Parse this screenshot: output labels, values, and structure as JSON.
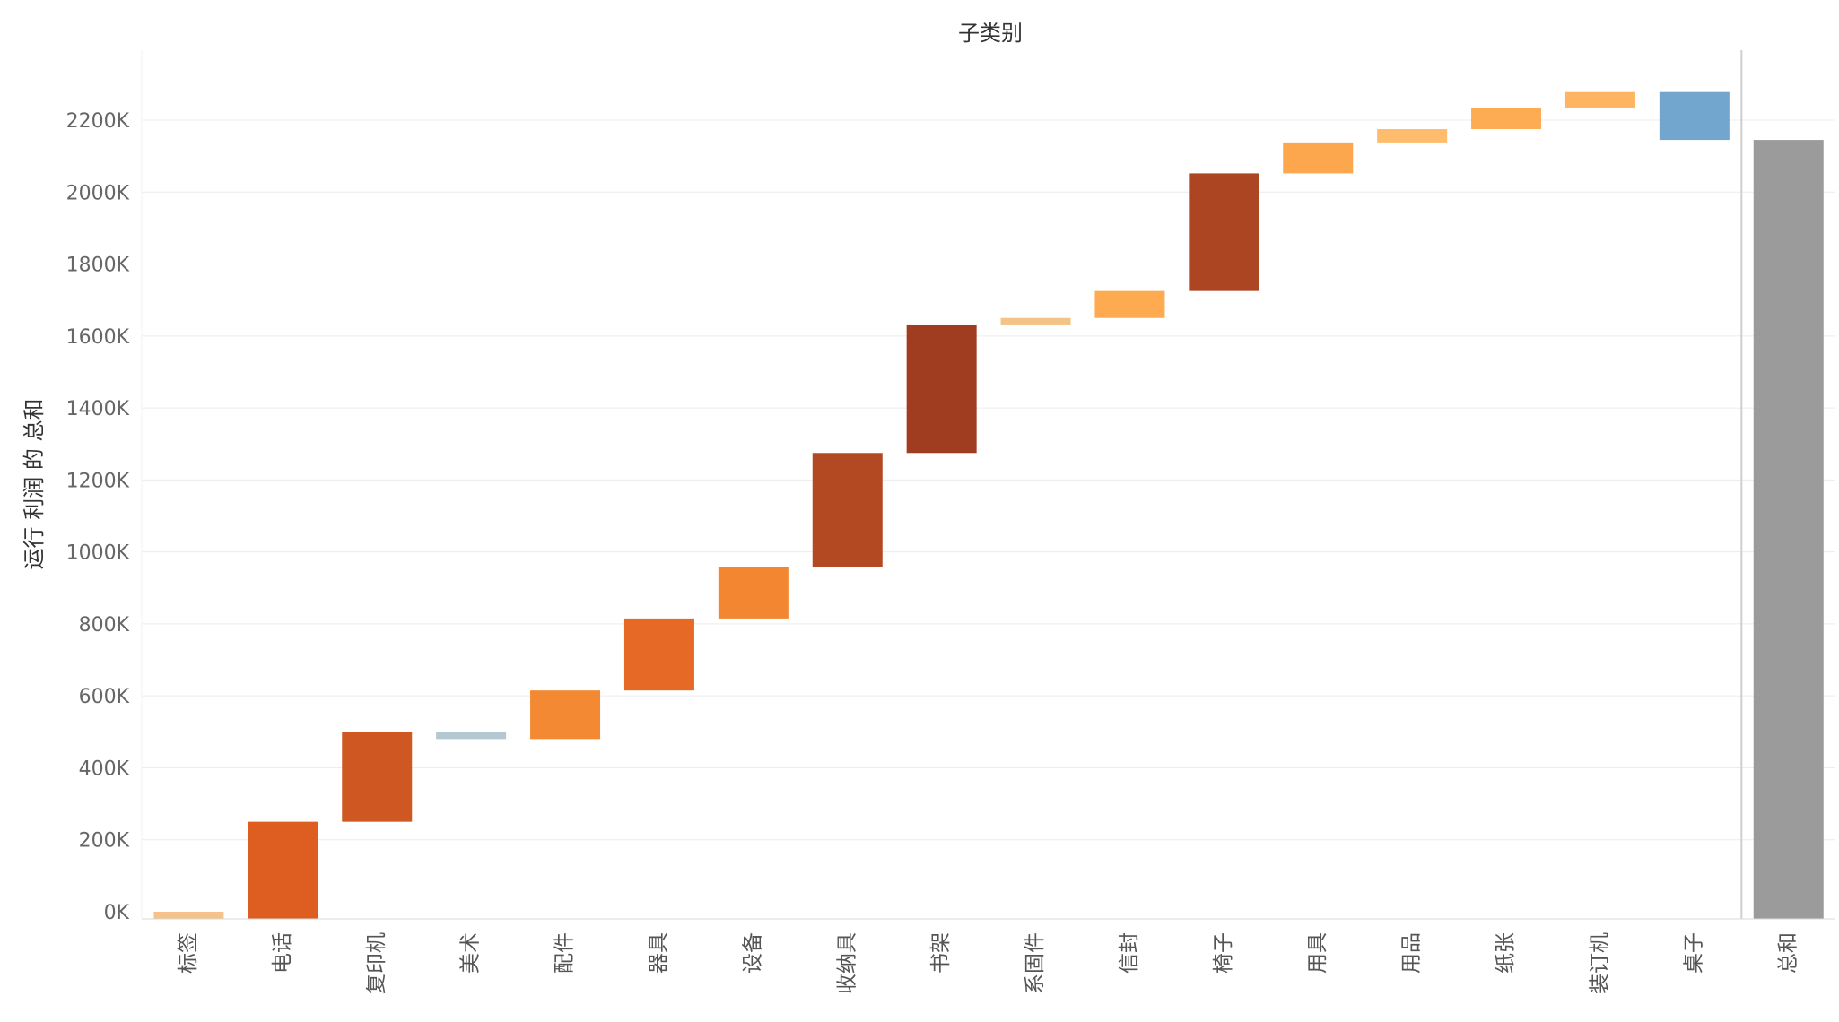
{
  "chart_data": {
    "type": "waterfall",
    "title": "子类别",
    "ylabel": "运行 利润 的 总和",
    "xlabel": "",
    "ylim": [
      -40,
      2400
    ],
    "y_ticks": [
      0,
      200,
      400,
      600,
      800,
      1000,
      1200,
      1400,
      1600,
      1800,
      2000,
      2200
    ],
    "y_tick_labels": [
      "0K",
      "200K",
      "400K",
      "600K",
      "800K",
      "1000K",
      "1200K",
      "1400K",
      "1600K",
      "1800K",
      "2000K",
      "2200K"
    ],
    "grid": true,
    "categories": [
      "标签",
      "电话",
      "复印机",
      "美术",
      "配件",
      "器具",
      "设备",
      "收纳具",
      "书架",
      "系固件",
      "信封",
      "椅子",
      "用具",
      "用品",
      "纸张",
      "装订机",
      "桌子"
    ],
    "steps": [
      {
        "start": 0,
        "end": -20,
        "color": "#f5c28a"
      },
      {
        "start": -20,
        "end": 250,
        "color": "#dd5e20"
      },
      {
        "start": 250,
        "end": 500,
        "color": "#cf5722"
      },
      {
        "start": 500,
        "end": 480,
        "color": "#b4c8d2"
      },
      {
        "start": 480,
        "end": 615,
        "color": "#f38a33"
      },
      {
        "start": 615,
        "end": 815,
        "color": "#e66a25"
      },
      {
        "start": 815,
        "end": 958,
        "color": "#f38630"
      },
      {
        "start": 958,
        "end": 1275,
        "color": "#b34922"
      },
      {
        "start": 1275,
        "end": 1632,
        "color": "#a03c20"
      },
      {
        "start": 1632,
        "end": 1650,
        "color": "#f3c488"
      },
      {
        "start": 1650,
        "end": 1725,
        "color": "#fdaa50"
      },
      {
        "start": 1725,
        "end": 2052,
        "color": "#ac4522"
      },
      {
        "start": 2052,
        "end": 2138,
        "color": "#fca64e"
      },
      {
        "start": 2138,
        "end": 2175,
        "color": "#ffbc6c"
      },
      {
        "start": 2175,
        "end": 2235,
        "color": "#fdac53"
      },
      {
        "start": 2235,
        "end": 2278,
        "color": "#fdb562"
      },
      {
        "start": 2278,
        "end": 2145,
        "color": "#73a6cf"
      }
    ],
    "total": {
      "label": "总和",
      "value": 2145,
      "color": "#9b9b9b"
    }
  }
}
